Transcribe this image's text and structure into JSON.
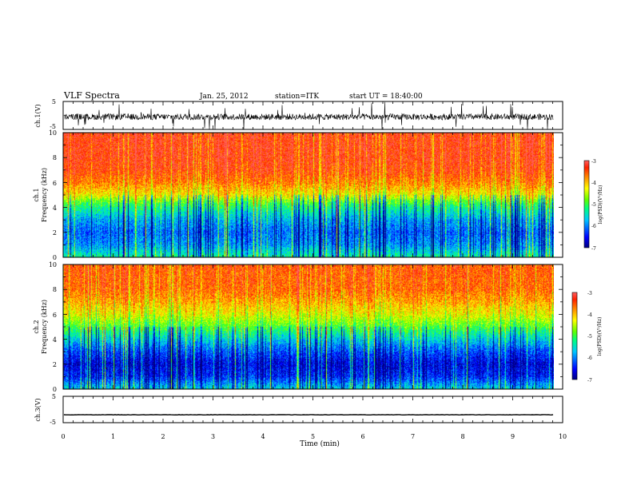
{
  "header": {
    "title": "VLF Spectra",
    "date": "Jan. 25, 2012",
    "station": "station=ITK",
    "start_ut": "start UT = 18:40:00"
  },
  "chart_data": [
    {
      "type": "line",
      "panel": "ch1-waveform",
      "ylabel": "ch.1(V)",
      "yticks": [
        "5",
        "-5"
      ],
      "ylim": [
        -5,
        5
      ],
      "xlim": [
        0,
        10
      ],
      "baseline": -0.5,
      "color": "#000000"
    },
    {
      "type": "heatmap",
      "panel": "ch1-spectrogram",
      "ylabel_line1": "ch.1",
      "ylabel_line2": "Frequency (kHz)",
      "yticks": [
        "0",
        "2",
        "4",
        "6",
        "8",
        "10"
      ],
      "ylim": [
        0,
        10
      ],
      "xlim": [
        0,
        9.83
      ],
      "colorbar": {
        "label": "log(PSD)(V²/Hz)",
        "ticks": [
          "-3",
          "-4",
          "-5",
          "-6",
          "-7"
        ],
        "range": [
          -7,
          -3
        ]
      },
      "profile_freq_khz": [
        0,
        1,
        2,
        3,
        4,
        4.5,
        5,
        6,
        7,
        8,
        10
      ],
      "profile_log_psd": [
        -5.3,
        -5.9,
        -6.1,
        -5.8,
        -5.2,
        -4.8,
        -4.2,
        -3.7,
        -3.4,
        -3.3,
        -3.3
      ]
    },
    {
      "type": "heatmap",
      "panel": "ch2-spectrogram",
      "ylabel_line1": "ch.2",
      "ylabel_line2": "Frequency (kHz)",
      "yticks": [
        "0",
        "2",
        "4",
        "6",
        "8",
        "10"
      ],
      "ylim": [
        0,
        10
      ],
      "xlim": [
        0,
        9.83
      ],
      "colorbar": {
        "label": "log(PSD)(V²/Hz)",
        "ticks": [
          "-3",
          "-4",
          "-5",
          "-6",
          "-7"
        ],
        "range": [
          -7,
          -3
        ]
      },
      "profile_freq_khz": [
        0,
        1,
        2,
        3,
        4,
        5,
        6,
        7,
        8,
        10
      ],
      "profile_log_psd": [
        -5.6,
        -6.4,
        -6.6,
        -6.2,
        -5.6,
        -4.9,
        -4.3,
        -3.9,
        -3.6,
        -3.5
      ]
    },
    {
      "type": "line",
      "panel": "ch3-waveform",
      "ylabel": "ch.3(V)",
      "yticks": [
        "5",
        "-5"
      ],
      "ylim": [
        -5,
        5
      ],
      "xlim": [
        0,
        10
      ],
      "baseline": -2,
      "color": "#000000"
    },
    {
      "type": "axis",
      "panel": "time-axis",
      "xlabel": "Time (min)",
      "xticks": [
        "0",
        "1",
        "2",
        "3",
        "4",
        "5",
        "6",
        "7",
        "8",
        "9",
        "10"
      ],
      "xlim": [
        0,
        10
      ]
    }
  ]
}
